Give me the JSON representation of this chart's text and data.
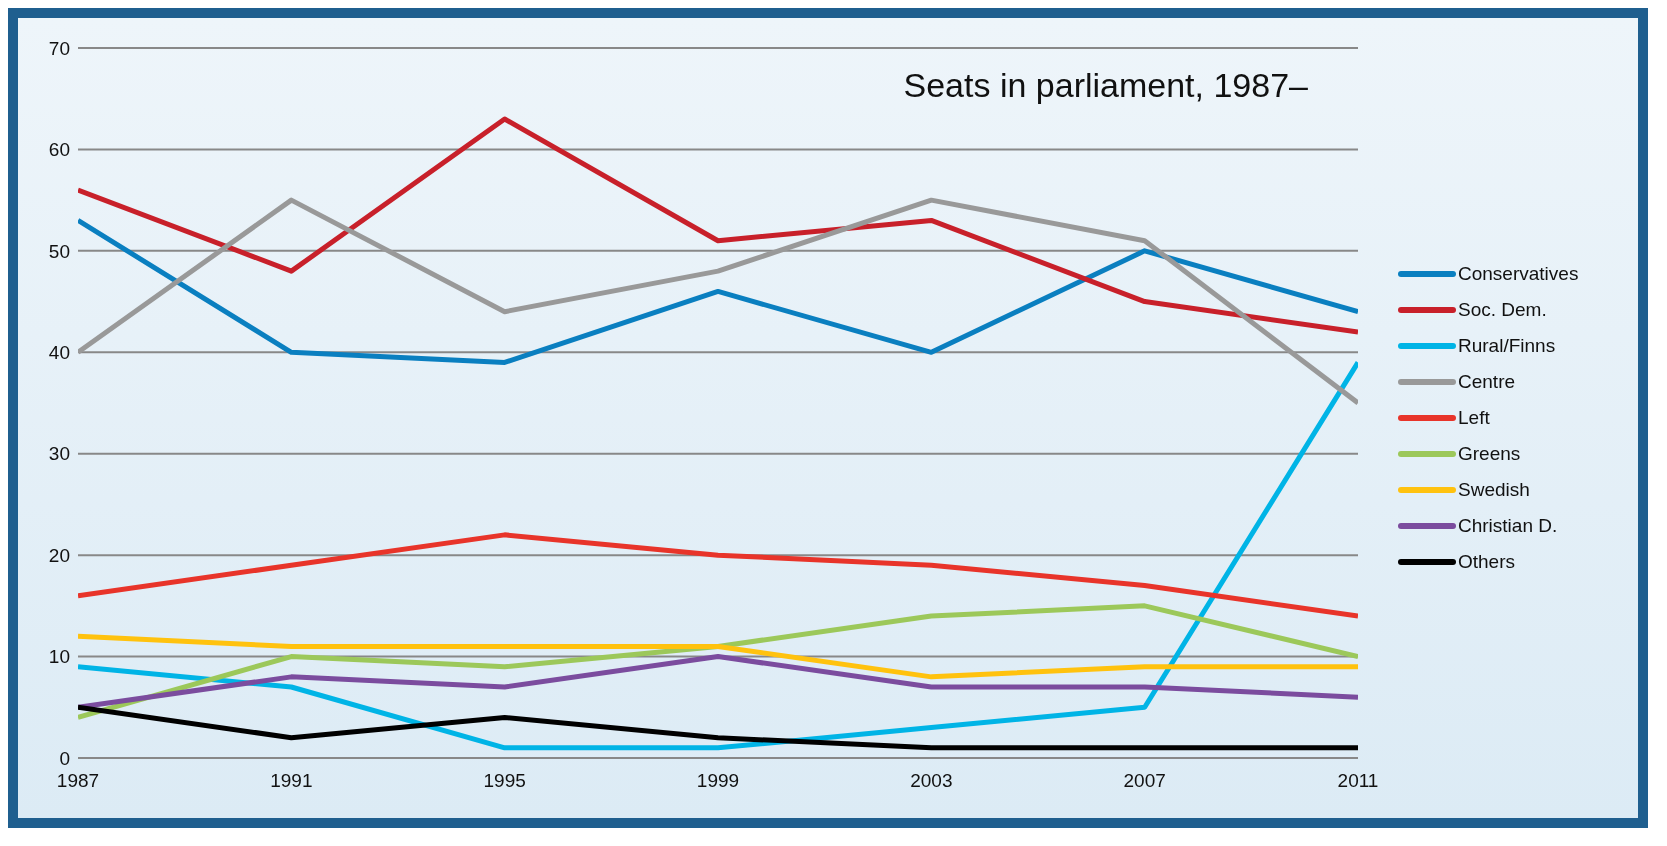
{
  "chart_data": {
    "type": "line",
    "title": "Seats in parliament, 1987–",
    "x": [
      1987,
      1991,
      1995,
      1999,
      2003,
      2007,
      2011
    ],
    "series": [
      {
        "name": "Conservatives",
        "color": "#0a7fc0",
        "values": [
          53,
          40,
          39,
          46,
          40,
          50,
          44
        ]
      },
      {
        "name": "Soc. Dem.",
        "color": "#c8202a",
        "values": [
          56,
          48,
          63,
          51,
          53,
          45,
          42
        ]
      },
      {
        "name": "Rural/Finns",
        "color": "#00b4e6",
        "values": [
          9,
          7,
          1,
          1,
          3,
          5,
          39
        ]
      },
      {
        "name": "Centre",
        "color": "#999999",
        "values": [
          40,
          55,
          44,
          48,
          55,
          51,
          35
        ]
      },
      {
        "name": "Left",
        "color": "#e8342a",
        "values": [
          16,
          19,
          22,
          20,
          19,
          17,
          14
        ]
      },
      {
        "name": "Greens",
        "color": "#9cc85a",
        "values": [
          4,
          10,
          9,
          11,
          14,
          15,
          10
        ]
      },
      {
        "name": "Swedish",
        "color": "#ffc20e",
        "values": [
          12,
          11,
          11,
          11,
          8,
          9,
          9
        ]
      },
      {
        "name": "Christian D.",
        "color": "#7b4c9e",
        "values": [
          5,
          8,
          7,
          10,
          7,
          7,
          6
        ]
      },
      {
        "name": "Others",
        "color": "#000000",
        "values": [
          5,
          2,
          4,
          2,
          1,
          1,
          1
        ]
      }
    ],
    "xlim": [
      1987,
      2011
    ],
    "xticks": [
      1987,
      1991,
      1995,
      1999,
      2003,
      2007,
      2011
    ],
    "ylim": [
      0,
      70
    ],
    "yticks": [
      0,
      10,
      20,
      30,
      40,
      50,
      60,
      70
    ],
    "grid": "y",
    "legend": "right",
    "marker": "none",
    "line_style": "solid"
  }
}
